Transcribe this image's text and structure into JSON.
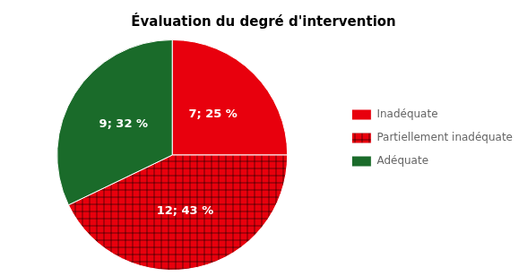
{
  "chart_data": {
    "type": "pie",
    "title": "Évaluation du degré d'intervention",
    "categories": [
      "Inadéquate",
      "Partiellement inadéquate",
      "Adéquate"
    ],
    "values": [
      7,
      12,
      9
    ],
    "value_labels": [
      "7; 25 %",
      "12; 43 %",
      "9; 32 %"
    ],
    "colors": [
      "#e8000d",
      "#e8000d",
      "#1a6b2a"
    ],
    "data_labels": true,
    "legend": "right"
  }
}
